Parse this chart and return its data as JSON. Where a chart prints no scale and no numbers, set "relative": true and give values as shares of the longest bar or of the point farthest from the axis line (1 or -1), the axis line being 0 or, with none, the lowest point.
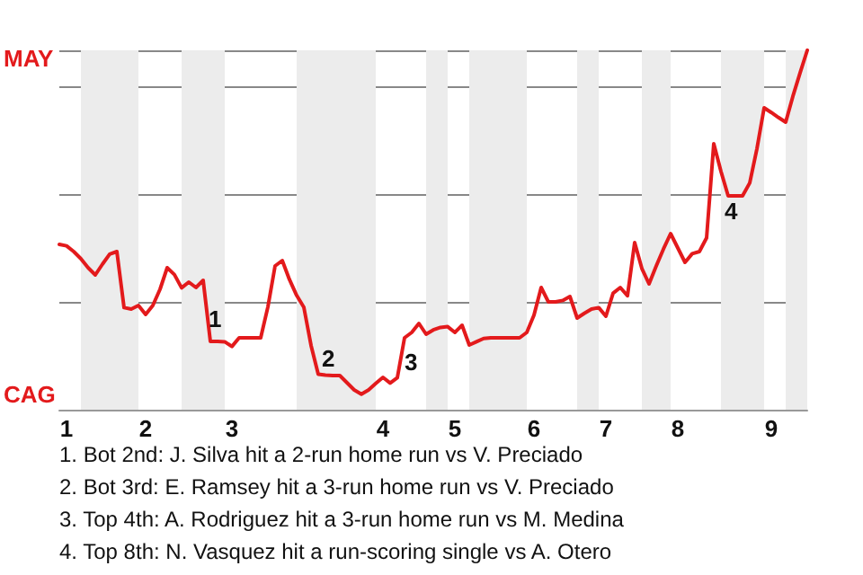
{
  "chart_data": {
    "type": "line",
    "relative": true,
    "categories": [
      null,
      "1",
      null,
      null,
      null,
      null,
      null,
      null,
      null,
      null,
      null,
      null,
      "2",
      null,
      null,
      null,
      null,
      null,
      null,
      null,
      null,
      null,
      null,
      null,
      "3",
      null,
      null,
      null,
      null,
      null,
      null,
      null,
      null,
      null,
      null,
      null,
      null,
      null,
      null,
      null,
      null,
      null,
      null,
      null,
      null,
      "4",
      null,
      null,
      null,
      null,
      null,
      null,
      null,
      null,
      null,
      "5",
      null,
      null,
      null,
      null,
      null,
      null,
      null,
      null,
      null,
      null,
      "6",
      null,
      null,
      null,
      null,
      null,
      null,
      null,
      null,
      null,
      "7",
      null,
      null,
      null,
      null,
      null,
      null,
      null,
      null,
      null,
      "8",
      null,
      null,
      null,
      null,
      null,
      null,
      null,
      null,
      null,
      null,
      null,
      null,
      "9",
      null,
      null,
      null,
      null,
      null
    ],
    "series": [
      {
        "color": "#e31a1c",
        "values": [
          0.46,
          0.456,
          0.44,
          0.42,
          0.395,
          0.375,
          0.405,
          0.433,
          0.44,
          0.284,
          0.28,
          0.29,
          0.265,
          0.29,
          0.335,
          0.395,
          0.376,
          0.339,
          0.355,
          0.34,
          0.36,
          0.19,
          0.19,
          0.189,
          0.176,
          0.2,
          0.2,
          0.2,
          0.2,
          0.286,
          0.4,
          0.415,
          0.362,
          0.318,
          0.285,
          0.179,
          0.099,
          0.096,
          0.095,
          0.095,
          0.075,
          0.055,
          0.043,
          0.055,
          0.073,
          0.09,
          0.074,
          0.089,
          0.2,
          0.215,
          0.24,
          0.21,
          0.222,
          0.229,
          0.231,
          0.215,
          0.235,
          0.18,
          0.189,
          0.198,
          0.2,
          0.2,
          0.2,
          0.2,
          0.2,
          0.215,
          0.263,
          0.34,
          0.3,
          0.3,
          0.304,
          0.315,
          0.255,
          0.268,
          0.28,
          0.284,
          0.26,
          0.324,
          0.34,
          0.317,
          0.465,
          0.393,
          0.35,
          0.4,
          0.447,
          0.49,
          0.45,
          0.41,
          0.434,
          0.44,
          0.478,
          0.74,
          0.663,
          0.595,
          0.595,
          0.595,
          0.631,
          0.726,
          0.84,
          0.827,
          0.813,
          0.8,
          0.872,
          0.937,
          1.0
        ]
      }
    ],
    "grid": "y",
    "marker": "none",
    "annotations": [
      "MAY",
      "CAG",
      "1",
      "2",
      "3",
      "4",
      "1. Bot 2nd: J. Silva hit a 2-run home run vs V. Preciado",
      "2. Bot 3rd: E. Ramsey hit a 3-run home run vs V. Preciado",
      "3. Top 4th: A. Rodriguez hit a 3-run home run vs M. Medina",
      "4. Top 8th: N. Vasquez hit a run-scoring single vs A. Otero"
    ]
  }
}
